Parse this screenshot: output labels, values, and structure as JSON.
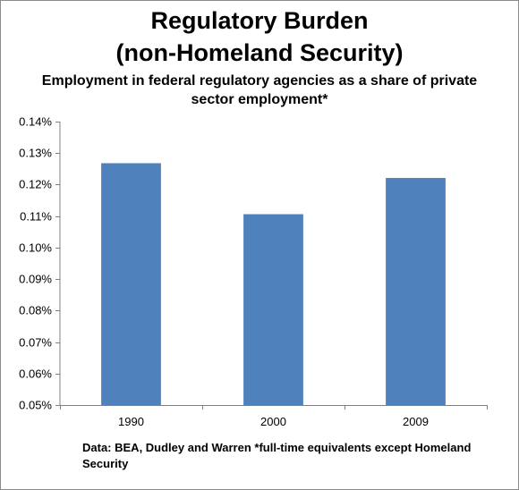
{
  "chart_data": {
    "type": "bar",
    "title_line1": "Regulatory Burden",
    "title_line2": "(non-Homeland Security)",
    "subtitle": "Employment in federal regulatory agencies as a share of private sector employment*",
    "categories": [
      "1990",
      "2000",
      "2009"
    ],
    "values": [
      0.1268,
      0.1106,
      0.1221
    ],
    "ylim": [
      0.05,
      0.14
    ],
    "yticks": [
      "0.05%",
      "0.06%",
      "0.07%",
      "0.08%",
      "0.09%",
      "0.10%",
      "0.11%",
      "0.12%",
      "0.13%",
      "0.14%"
    ],
    "ytick_values": [
      0.05,
      0.06,
      0.07,
      0.08,
      0.09,
      0.1,
      0.11,
      0.12,
      0.13,
      0.14
    ],
    "xlabel": "",
    "ylabel": "",
    "grid": false,
    "bar_color": "#4f81bd",
    "footnote": "Data: BEA, Dudley and Warren    *full-time equivalents except Homeland Security"
  }
}
